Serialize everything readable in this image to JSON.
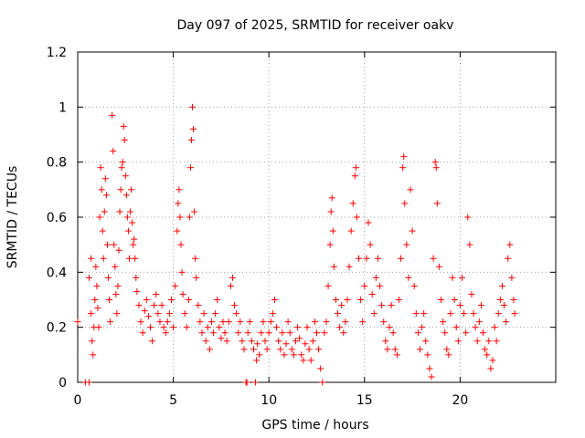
{
  "chart_data": {
    "type": "scatter",
    "title": "Day 097 of 2025, SRMTID for receiver oakv",
    "xlabel": "GPS time / hours",
    "ylabel": "SRMTID / TECUs",
    "xlim": [
      0,
      25
    ],
    "ylim": [
      0,
      1.2
    ],
    "x_ticks": [
      0,
      5,
      10,
      15,
      20
    ],
    "x_tick_labels": [
      "0",
      "5",
      "10",
      "15",
      "20"
    ],
    "y_ticks": [
      0,
      0.2,
      0.4,
      0.6,
      0.8,
      1.0,
      1.2
    ],
    "y_tick_labels": [
      "0",
      "0.2",
      "0.4",
      "0.6",
      "0.8",
      "1",
      "1.2"
    ],
    "grid": true,
    "marker": "+",
    "color": "#ff0000",
    "series": [
      {
        "name": "SRMTID",
        "points": [
          [
            0.0,
            0.22
          ],
          [
            0.4,
            0.0
          ],
          [
            0.6,
            0.0
          ],
          [
            0.6,
            0.38
          ],
          [
            0.7,
            0.45
          ],
          [
            0.7,
            0.25
          ],
          [
            0.75,
            0.15
          ],
          [
            0.8,
            0.1
          ],
          [
            0.85,
            0.2
          ],
          [
            0.9,
            0.3
          ],
          [
            0.95,
            0.42
          ],
          [
            1.0,
            0.35
          ],
          [
            1.05,
            0.27
          ],
          [
            1.1,
            0.2
          ],
          [
            1.15,
            0.6
          ],
          [
            1.2,
            0.78
          ],
          [
            1.25,
            0.7
          ],
          [
            1.3,
            0.55
          ],
          [
            1.35,
            0.45
          ],
          [
            1.4,
            0.62
          ],
          [
            1.45,
            0.74
          ],
          [
            1.5,
            0.68
          ],
          [
            1.55,
            0.5
          ],
          [
            1.6,
            0.38
          ],
          [
            1.65,
            0.3
          ],
          [
            1.7,
            0.22
          ],
          [
            1.8,
            0.97
          ],
          [
            1.85,
            0.84
          ],
          [
            1.9,
            0.5
          ],
          [
            1.95,
            0.42
          ],
          [
            2.0,
            0.32
          ],
          [
            2.05,
            0.25
          ],
          [
            2.1,
            0.35
          ],
          [
            2.15,
            0.48
          ],
          [
            2.2,
            0.62
          ],
          [
            2.25,
            0.7
          ],
          [
            2.3,
            0.78
          ],
          [
            2.35,
            0.8
          ],
          [
            2.4,
            0.93
          ],
          [
            2.45,
            0.88
          ],
          [
            2.5,
            0.75
          ],
          [
            2.55,
            0.68
          ],
          [
            2.6,
            0.6
          ],
          [
            2.65,
            0.55
          ],
          [
            2.7,
            0.45
          ],
          [
            2.75,
            0.62
          ],
          [
            2.8,
            0.7
          ],
          [
            2.85,
            0.58
          ],
          [
            2.9,
            0.5
          ],
          [
            2.95,
            0.52
          ],
          [
            3.0,
            0.45
          ],
          [
            3.05,
            0.38
          ],
          [
            3.1,
            0.33
          ],
          [
            3.2,
            0.28
          ],
          [
            3.3,
            0.22
          ],
          [
            3.4,
            0.18
          ],
          [
            3.5,
            0.26
          ],
          [
            3.6,
            0.3
          ],
          [
            3.7,
            0.24
          ],
          [
            3.8,
            0.2
          ],
          [
            3.9,
            0.15
          ],
          [
            4.0,
            0.28
          ],
          [
            4.1,
            0.32
          ],
          [
            4.2,
            0.25
          ],
          [
            4.3,
            0.22
          ],
          [
            4.4,
            0.28
          ],
          [
            4.5,
            0.2
          ],
          [
            4.6,
            0.18
          ],
          [
            4.7,
            0.22
          ],
          [
            4.8,
            0.25
          ],
          [
            4.9,
            0.3
          ],
          [
            5.0,
            0.2
          ],
          [
            5.1,
            0.35
          ],
          [
            5.2,
            0.55
          ],
          [
            5.25,
            0.65
          ],
          [
            5.3,
            0.7
          ],
          [
            5.35,
            0.6
          ],
          [
            5.4,
            0.5
          ],
          [
            5.45,
            0.4
          ],
          [
            5.5,
            0.32
          ],
          [
            5.6,
            0.25
          ],
          [
            5.7,
            0.2
          ],
          [
            5.8,
            0.3
          ],
          [
            5.85,
            0.6
          ],
          [
            5.9,
            0.78
          ],
          [
            5.95,
            0.88
          ],
          [
            6.0,
            1.0
          ],
          [
            6.05,
            0.92
          ],
          [
            6.1,
            0.62
          ],
          [
            6.15,
            0.45
          ],
          [
            6.2,
            0.38
          ],
          [
            6.3,
            0.28
          ],
          [
            6.4,
            0.22
          ],
          [
            6.5,
            0.18
          ],
          [
            6.6,
            0.25
          ],
          [
            6.7,
            0.15
          ],
          [
            6.8,
            0.2
          ],
          [
            6.9,
            0.12
          ],
          [
            7.0,
            0.22
          ],
          [
            7.1,
            0.18
          ],
          [
            7.2,
            0.25
          ],
          [
            7.3,
            0.3
          ],
          [
            7.4,
            0.2
          ],
          [
            7.5,
            0.16
          ],
          [
            7.6,
            0.22
          ],
          [
            7.7,
            0.18
          ],
          [
            7.8,
            0.15
          ],
          [
            7.9,
            0.22
          ],
          [
            8.0,
            0.35
          ],
          [
            8.1,
            0.38
          ],
          [
            8.2,
            0.28
          ],
          [
            8.3,
            0.25
          ],
          [
            8.4,
            0.18
          ],
          [
            8.5,
            0.22
          ],
          [
            8.6,
            0.15
          ],
          [
            8.7,
            0.12
          ],
          [
            8.8,
            0.0
          ],
          [
            8.85,
            0.0
          ],
          [
            8.9,
            0.18
          ],
          [
            9.0,
            0.22
          ],
          [
            9.1,
            0.15
          ],
          [
            9.2,
            0.12
          ],
          [
            9.3,
            0.0
          ],
          [
            9.35,
            0.08
          ],
          [
            9.4,
            0.14
          ],
          [
            9.5,
            0.1
          ],
          [
            9.6,
            0.18
          ],
          [
            9.7,
            0.22
          ],
          [
            9.8,
            0.15
          ],
          [
            9.9,
            0.12
          ],
          [
            10.0,
            0.18
          ],
          [
            10.1,
            0.22
          ],
          [
            10.2,
            0.25
          ],
          [
            10.3,
            0.3
          ],
          [
            10.4,
            0.2
          ],
          [
            10.5,
            0.15
          ],
          [
            10.6,
            0.12
          ],
          [
            10.7,
            0.18
          ],
          [
            10.8,
            0.1
          ],
          [
            10.9,
            0.14
          ],
          [
            11.0,
            0.22
          ],
          [
            11.1,
            0.18
          ],
          [
            11.2,
            0.12
          ],
          [
            11.3,
            0.1
          ],
          [
            11.4,
            0.15
          ],
          [
            11.5,
            0.2
          ],
          [
            11.6,
            0.16
          ],
          [
            11.7,
            0.1
          ],
          [
            11.8,
            0.08
          ],
          [
            11.9,
            0.14
          ],
          [
            12.0,
            0.2
          ],
          [
            12.1,
            0.12
          ],
          [
            12.2,
            0.08
          ],
          [
            12.3,
            0.15
          ],
          [
            12.4,
            0.22
          ],
          [
            12.5,
            0.18
          ],
          [
            12.6,
            0.12
          ],
          [
            12.7,
            0.05
          ],
          [
            12.8,
            0.0
          ],
          [
            12.9,
            0.18
          ],
          [
            13.0,
            0.22
          ],
          [
            13.1,
            0.35
          ],
          [
            13.2,
            0.5
          ],
          [
            13.25,
            0.62
          ],
          [
            13.3,
            0.67
          ],
          [
            13.35,
            0.55
          ],
          [
            13.4,
            0.42
          ],
          [
            13.5,
            0.3
          ],
          [
            13.6,
            0.25
          ],
          [
            13.7,
            0.2
          ],
          [
            13.8,
            0.28
          ],
          [
            13.9,
            0.18
          ],
          [
            14.0,
            0.22
          ],
          [
            14.1,
            0.3
          ],
          [
            14.2,
            0.42
          ],
          [
            14.3,
            0.55
          ],
          [
            14.4,
            0.65
          ],
          [
            14.5,
            0.75
          ],
          [
            14.55,
            0.78
          ],
          [
            14.6,
            0.6
          ],
          [
            14.7,
            0.45
          ],
          [
            14.8,
            0.3
          ],
          [
            14.9,
            0.22
          ],
          [
            15.0,
            0.35
          ],
          [
            15.1,
            0.45
          ],
          [
            15.2,
            0.58
          ],
          [
            15.3,
            0.5
          ],
          [
            15.4,
            0.32
          ],
          [
            15.5,
            0.25
          ],
          [
            15.6,
            0.38
          ],
          [
            15.7,
            0.45
          ],
          [
            15.8,
            0.35
          ],
          [
            15.9,
            0.28
          ],
          [
            16.0,
            0.22
          ],
          [
            16.1,
            0.15
          ],
          [
            16.2,
            0.12
          ],
          [
            16.3,
            0.2
          ],
          [
            16.4,
            0.28
          ],
          [
            16.5,
            0.18
          ],
          [
            16.6,
            0.12
          ],
          [
            16.7,
            0.1
          ],
          [
            16.8,
            0.3
          ],
          [
            16.9,
            0.45
          ],
          [
            17.0,
            0.78
          ],
          [
            17.05,
            0.82
          ],
          [
            17.1,
            0.65
          ],
          [
            17.2,
            0.5
          ],
          [
            17.3,
            0.38
          ],
          [
            17.4,
            0.7
          ],
          [
            17.5,
            0.55
          ],
          [
            17.6,
            0.35
          ],
          [
            17.7,
            0.25
          ],
          [
            17.8,
            0.18
          ],
          [
            17.9,
            0.12
          ],
          [
            18.0,
            0.2
          ],
          [
            18.1,
            0.25
          ],
          [
            18.2,
            0.15
          ],
          [
            18.3,
            0.1
          ],
          [
            18.4,
            0.05
          ],
          [
            18.5,
            0.02
          ],
          [
            18.6,
            0.45
          ],
          [
            18.7,
            0.8
          ],
          [
            18.75,
            0.78
          ],
          [
            18.8,
            0.65
          ],
          [
            18.9,
            0.42
          ],
          [
            19.0,
            0.3
          ],
          [
            19.1,
            0.22
          ],
          [
            19.2,
            0.18
          ],
          [
            19.3,
            0.12
          ],
          [
            19.4,
            0.1
          ],
          [
            19.5,
            0.25
          ],
          [
            19.6,
            0.38
          ],
          [
            19.7,
            0.3
          ],
          [
            19.8,
            0.2
          ],
          [
            19.9,
            0.15
          ],
          [
            20.0,
            0.28
          ],
          [
            20.1,
            0.38
          ],
          [
            20.2,
            0.25
          ],
          [
            20.3,
            0.18
          ],
          [
            20.4,
            0.6
          ],
          [
            20.5,
            0.5
          ],
          [
            20.6,
            0.32
          ],
          [
            20.7,
            0.25
          ],
          [
            20.8,
            0.2
          ],
          [
            20.9,
            0.15
          ],
          [
            21.0,
            0.22
          ],
          [
            21.1,
            0.28
          ],
          [
            21.2,
            0.18
          ],
          [
            21.3,
            0.12
          ],
          [
            21.4,
            0.1
          ],
          [
            21.5,
            0.15
          ],
          [
            21.6,
            0.05
          ],
          [
            21.7,
            0.08
          ],
          [
            21.8,
            0.2
          ],
          [
            21.9,
            0.15
          ],
          [
            22.0,
            0.25
          ],
          [
            22.1,
            0.3
          ],
          [
            22.2,
            0.35
          ],
          [
            22.3,
            0.28
          ],
          [
            22.4,
            0.22
          ],
          [
            22.5,
            0.45
          ],
          [
            22.6,
            0.5
          ],
          [
            22.7,
            0.38
          ],
          [
            22.8,
            0.3
          ],
          [
            22.85,
            0.25
          ]
        ]
      }
    ]
  }
}
